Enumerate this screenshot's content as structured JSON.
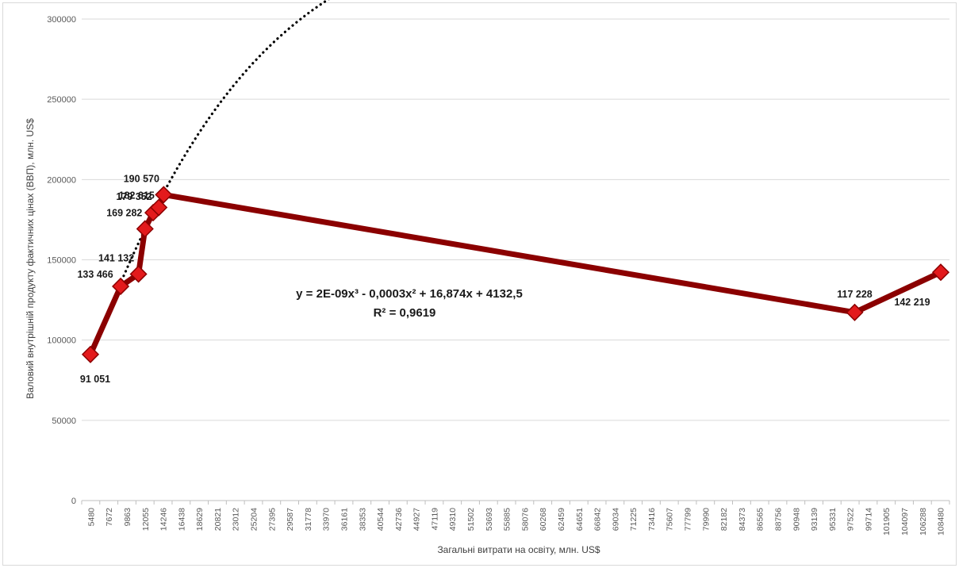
{
  "chart_data": {
    "type": "line",
    "xlabel": "Загальні витрати на освіту, млн. US$",
    "ylabel": "Валовий внутрішній продукту фактичних цінах (ВВП), млн. US$",
    "ylim": [
      0,
      300000
    ],
    "yticks": [
      "0",
      "50000",
      "100000",
      "150000",
      "200000",
      "250000",
      "300000"
    ],
    "xticks": [
      "5480",
      "7672",
      "9863",
      "12055",
      "14246",
      "16438",
      "18629",
      "20821",
      "23012",
      "25204",
      "27395",
      "29587",
      "31778",
      "33970",
      "36161",
      "38353",
      "40544",
      "42736",
      "44927",
      "47119",
      "49310",
      "51502",
      "53693",
      "55885",
      "58076",
      "60268",
      "62459",
      "64651",
      "66842",
      "69034",
      "71225",
      "73416",
      "75607",
      "77799",
      "79990",
      "82182",
      "84373",
      "86565",
      "88756",
      "90948",
      "93139",
      "95331",
      "97522",
      "99714",
      "101905",
      "104097",
      "106288",
      "108480"
    ],
    "series": [
      {
        "color": "#8b0000",
        "marker_color": "#e31a1c",
        "x": [
          5480,
          9200,
          11400,
          12200,
          13200,
          13900,
          14500,
          99600,
          110200
        ],
        "y": [
          91051,
          133466,
          141132,
          169282,
          179352,
          182615,
          190570,
          117228,
          142219
        ],
        "labels": [
          "91 051",
          "133 466",
          "141 132",
          "169 282",
          "179 352",
          "182 615",
          "190 570",
          "117 228",
          "142 219"
        ]
      }
    ],
    "trendline": {
      "type": "polynomial",
      "order": 3,
      "style": "dotted",
      "color": "#000000",
      "equation": "y = 2E-09x³ - 0,0003x² + 16,874x + 4132,5",
      "r_squared": "R² = 0,9619"
    },
    "grid": "horizontal",
    "legend": "none"
  }
}
